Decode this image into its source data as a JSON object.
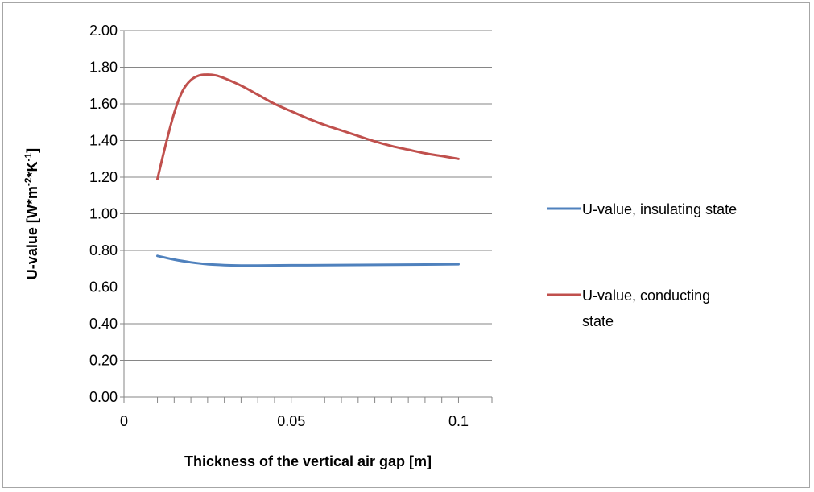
{
  "chart_data": {
    "type": "line",
    "title": "",
    "xlabel": "Thickness of the vertical air gap [m]",
    "ylabel_base": "U-value [W*m",
    "ylabel_sup1": "-2",
    "ylabel_mid": "*K",
    "ylabel_sup2": "-1",
    "ylabel_end": "]",
    "xlim": [
      0,
      0.11
    ],
    "ylim": [
      0,
      2
    ],
    "x_ticks": [
      0,
      0.05,
      0.1
    ],
    "x_tick_labels": [
      "0",
      "0.05",
      "0.1"
    ],
    "x_minor_ticks": [
      0.01,
      0.015,
      0.02,
      0.025,
      0.03,
      0.035,
      0.04,
      0.045,
      0.05,
      0.055,
      0.06,
      0.065,
      0.07,
      0.075,
      0.08,
      0.085,
      0.09,
      0.095,
      0.1,
      0.11
    ],
    "y_ticks": [
      0,
      0.2,
      0.4,
      0.6,
      0.8,
      1.0,
      1.2,
      1.4,
      1.6,
      1.8,
      2.0
    ],
    "y_tick_labels": [
      "0.00",
      "0.20",
      "0.40",
      "0.60",
      "0.80",
      "1.00",
      "1.20",
      "1.40",
      "1.60",
      "1.80",
      "2.00"
    ],
    "grid": "horizontal",
    "legend_position": "right",
    "series": [
      {
        "name": "U-value, insulating state",
        "legend_lines": [
          "U-value, insulating state"
        ],
        "color": "#4f81bd",
        "x": [
          0.01,
          0.015,
          0.02,
          0.025,
          0.03,
          0.035,
          0.04,
          0.05,
          0.06,
          0.07,
          0.08,
          0.09,
          0.1
        ],
        "y": [
          0.77,
          0.75,
          0.735,
          0.725,
          0.72,
          0.718,
          0.718,
          0.719,
          0.72,
          0.721,
          0.722,
          0.723,
          0.725
        ]
      },
      {
        "name": "U-value, conducting state",
        "legend_lines": [
          "U-value, conducting",
          "state"
        ],
        "color": "#c0504d",
        "x": [
          0.01,
          0.0125,
          0.015,
          0.0175,
          0.02,
          0.0225,
          0.025,
          0.0275,
          0.03,
          0.035,
          0.04,
          0.045,
          0.05,
          0.055,
          0.06,
          0.065,
          0.07,
          0.075,
          0.08,
          0.085,
          0.09,
          0.095,
          0.1
        ],
        "y": [
          1.19,
          1.38,
          1.55,
          1.67,
          1.73,
          1.755,
          1.76,
          1.755,
          1.74,
          1.7,
          1.65,
          1.6,
          1.56,
          1.52,
          1.485,
          1.455,
          1.425,
          1.395,
          1.37,
          1.35,
          1.33,
          1.315,
          1.3
        ]
      }
    ]
  }
}
